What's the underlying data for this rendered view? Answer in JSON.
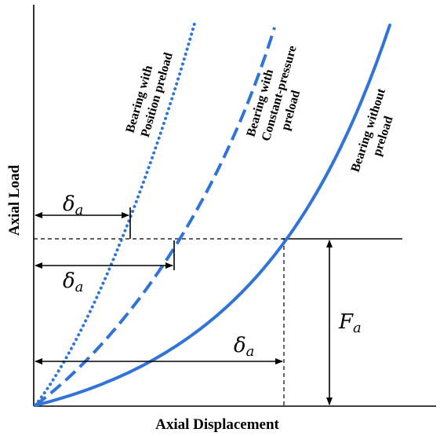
{
  "axes": {
    "x_label": "Axial Displacement",
    "y_label": "Axial Load"
  },
  "curves": [
    {
      "id": "position-preload",
      "label_lines": [
        "Bearing with",
        "Position preload"
      ],
      "style": "dotted"
    },
    {
      "id": "constant-pressure-preload",
      "label_lines": [
        "Bearing with",
        "Constant-pressure",
        "preload"
      ],
      "style": "dashed"
    },
    {
      "id": "without-preload",
      "label_lines": [
        "Bearing without",
        "preload"
      ],
      "style": "solid"
    }
  ],
  "annotations": {
    "delta_symbol": "δ",
    "delta_subscript": "a",
    "force_symbol": "F",
    "force_subscript": "a"
  },
  "colors": {
    "curve": "#2f74d6",
    "line": "#000000",
    "background": "#ffffff"
  }
}
